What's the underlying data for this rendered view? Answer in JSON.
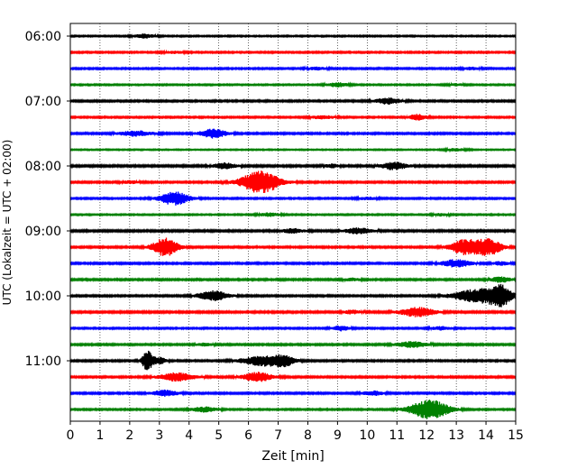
{
  "chart_data": {
    "type": "line",
    "title": "",
    "xlabel": "Zeit  [min]",
    "ylabel": "UTC (Lokalzeit = UTC + 02:00)",
    "xlim": [
      0,
      15
    ],
    "x_ticks": [
      "0",
      "1",
      "2",
      "3",
      "4",
      "5",
      "6",
      "7",
      "8",
      "9",
      "10",
      "11",
      "12",
      "13",
      "14",
      "15"
    ],
    "y_ticks": [
      "06:00",
      "07:00",
      "08:00",
      "09:00",
      "10:00",
      "11:00"
    ],
    "grid": "vertical dotted at each minute",
    "trace_interval_min": 15,
    "color_cycle": [
      "#000000",
      "#ff0000",
      "#0000ff",
      "#008000"
    ],
    "series": [
      {
        "start": "06:00",
        "noise": 0.08,
        "events": [
          {
            "t": 2.5,
            "amp": 0.25,
            "dur": 0.5
          }
        ]
      },
      {
        "start": "06:15",
        "noise": 0.09,
        "events": [
          {
            "t": 3.5,
            "amp": 0.12,
            "dur": 0.5
          }
        ]
      },
      {
        "start": "06:30",
        "noise": 0.09,
        "events": [
          {
            "t": 8.3,
            "amp": 0.15,
            "dur": 0.5
          },
          {
            "t": 13.5,
            "amp": 0.15,
            "dur": 0.4
          }
        ]
      },
      {
        "start": "06:45",
        "noise": 0.08,
        "events": [
          {
            "t": 9.0,
            "amp": 0.25,
            "dur": 0.5
          },
          {
            "t": 13.0,
            "amp": 0.12,
            "dur": 0.4
          }
        ]
      },
      {
        "start": "07:00",
        "noise": 0.1,
        "events": [
          {
            "t": 10.7,
            "amp": 0.35,
            "dur": 0.6
          }
        ]
      },
      {
        "start": "07:15",
        "noise": 0.09,
        "events": [
          {
            "t": 8.5,
            "amp": 0.18,
            "dur": 0.6
          },
          {
            "t": 11.7,
            "amp": 0.35,
            "dur": 0.4
          }
        ]
      },
      {
        "start": "07:30",
        "noise": 0.1,
        "events": [
          {
            "t": 2.2,
            "amp": 0.3,
            "dur": 0.8
          },
          {
            "t": 4.8,
            "amp": 0.55,
            "dur": 0.6
          }
        ]
      },
      {
        "start": "07:45",
        "noise": 0.07,
        "events": [
          {
            "t": 13.0,
            "amp": 0.15,
            "dur": 0.5
          }
        ]
      },
      {
        "start": "08:00",
        "noise": 0.11,
        "events": [
          {
            "t": 5.2,
            "amp": 0.35,
            "dur": 0.5
          },
          {
            "t": 10.9,
            "amp": 0.45,
            "dur": 0.6
          },
          {
            "t": 8.8,
            "amp": 0.2,
            "dur": 0.3
          }
        ]
      },
      {
        "start": "08:15",
        "noise": 0.1,
        "events": [
          {
            "t": 6.4,
            "amp": 1.4,
            "dur": 0.9
          },
          {
            "t": 2.0,
            "amp": 0.15,
            "dur": 0.4
          }
        ]
      },
      {
        "start": "08:30",
        "noise": 0.09,
        "events": [
          {
            "t": 3.5,
            "amp": 0.8,
            "dur": 0.7
          },
          {
            "t": 10.0,
            "amp": 0.15,
            "dur": 0.5
          }
        ]
      },
      {
        "start": "08:45",
        "noise": 0.08,
        "events": [
          {
            "t": 6.7,
            "amp": 0.2,
            "dur": 0.5
          },
          {
            "t": 12.5,
            "amp": 0.15,
            "dur": 0.4
          }
        ]
      },
      {
        "start": "09:00",
        "noise": 0.11,
        "events": [
          {
            "t": 7.5,
            "amp": 0.25,
            "dur": 0.5
          },
          {
            "t": 9.7,
            "amp": 0.35,
            "dur": 0.6
          }
        ]
      },
      {
        "start": "09:15",
        "noise": 0.1,
        "events": [
          {
            "t": 3.2,
            "amp": 1.1,
            "dur": 0.6
          },
          {
            "t": 13.3,
            "amp": 0.9,
            "dur": 0.7
          },
          {
            "t": 14.1,
            "amp": 0.95,
            "dur": 0.6
          }
        ]
      },
      {
        "start": "09:30",
        "noise": 0.1,
        "events": [
          {
            "t": 13.0,
            "amp": 0.45,
            "dur": 0.7
          },
          {
            "t": 14.5,
            "amp": 0.2,
            "dur": 0.4
          }
        ]
      },
      {
        "start": "09:45",
        "noise": 0.1,
        "events": [
          {
            "t": 14.5,
            "amp": 0.3,
            "dur": 0.5
          },
          {
            "t": 9.5,
            "amp": 0.15,
            "dur": 0.4
          }
        ]
      },
      {
        "start": "10:00",
        "noise": 0.1,
        "events": [
          {
            "t": 4.8,
            "amp": 0.6,
            "dur": 0.7
          },
          {
            "t": 13.8,
            "amp": 0.85,
            "dur": 1.2
          },
          {
            "t": 14.5,
            "amp": 0.95,
            "dur": 0.5
          }
        ]
      },
      {
        "start": "10:15",
        "noise": 0.11,
        "events": [
          {
            "t": 11.7,
            "amp": 0.55,
            "dur": 0.8
          },
          {
            "t": 9.5,
            "amp": 0.2,
            "dur": 0.4
          }
        ]
      },
      {
        "start": "10:30",
        "noise": 0.09,
        "events": [
          {
            "t": 9.1,
            "amp": 0.3,
            "dur": 0.4
          },
          {
            "t": 12.5,
            "amp": 0.2,
            "dur": 0.5
          }
        ]
      },
      {
        "start": "10:45",
        "noise": 0.1,
        "events": [
          {
            "t": 11.5,
            "amp": 0.35,
            "dur": 0.7
          },
          {
            "t": 4.5,
            "amp": 0.15,
            "dur": 0.4
          }
        ]
      },
      {
        "start": "11:00",
        "noise": 0.1,
        "events": [
          {
            "t": 2.6,
            "amp": 1.2,
            "dur": 0.25
          },
          {
            "t": 3.0,
            "amp": 0.4,
            "dur": 0.3
          },
          {
            "t": 6.5,
            "amp": 0.6,
            "dur": 1.0
          },
          {
            "t": 7.2,
            "amp": 0.5,
            "dur": 0.5
          }
        ]
      },
      {
        "start": "11:15",
        "noise": 0.1,
        "events": [
          {
            "t": 3.6,
            "amp": 0.5,
            "dur": 0.8
          },
          {
            "t": 6.3,
            "amp": 0.55,
            "dur": 0.7
          }
        ]
      },
      {
        "start": "11:30",
        "noise": 0.1,
        "events": [
          {
            "t": 3.2,
            "amp": 0.35,
            "dur": 0.6
          },
          {
            "t": 10.2,
            "amp": 0.25,
            "dur": 0.5
          }
        ]
      },
      {
        "start": "11:45",
        "noise": 0.09,
        "events": [
          {
            "t": 12.1,
            "amp": 1.2,
            "dur": 0.9
          },
          {
            "t": 4.5,
            "amp": 0.3,
            "dur": 0.6
          }
        ]
      }
    ]
  }
}
